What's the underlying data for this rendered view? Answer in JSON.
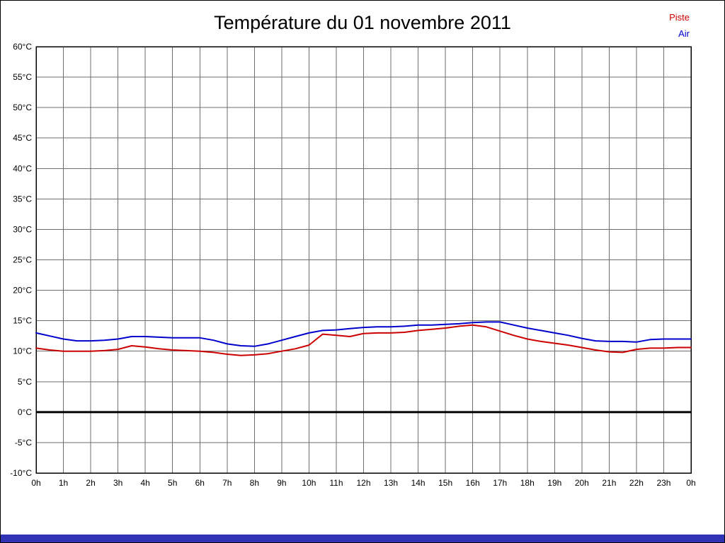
{
  "title": "Température du 01 novembre 2011",
  "footer_color": "#3232b4",
  "chart_data": {
    "type": "line",
    "title": "Température du 01 novembre 2011",
    "xlabel": "",
    "ylabel": "",
    "ylim": [
      -10,
      60
    ],
    "ytick_step": 5,
    "ytick_labels": [
      "60°C",
      "55°C",
      "50°C",
      "45°C",
      "40°C",
      "35°C",
      "30°C",
      "25°C",
      "20°C",
      "15°C",
      "10°C",
      "5°C",
      "0°C",
      "-5°C",
      "-10°C"
    ],
    "xtick_labels": [
      "0h",
      "1h",
      "2h",
      "3h",
      "4h",
      "5h",
      "6h",
      "7h",
      "8h",
      "9h",
      "10h",
      "11h",
      "12h",
      "13h",
      "14h",
      "15h",
      "16h",
      "17h",
      "18h",
      "19h",
      "20h",
      "21h",
      "22h",
      "23h",
      "0h"
    ],
    "grid": true,
    "zero_line": true,
    "legend_position": "top-right",
    "x": [
      0,
      0.5,
      1,
      1.5,
      2,
      2.5,
      3,
      3.5,
      4,
      4.5,
      5,
      5.5,
      6,
      6.5,
      7,
      7.5,
      8,
      8.5,
      9,
      9.5,
      10,
      10.5,
      11,
      11.5,
      12,
      12.5,
      13,
      13.5,
      14,
      14.5,
      15,
      15.5,
      16,
      16.5,
      17,
      17.5,
      18,
      18.5,
      19,
      19.5,
      20,
      20.5,
      21,
      21.5,
      22,
      22.5,
      23,
      23.5,
      24
    ],
    "series": [
      {
        "name": "Piste",
        "color": "#cc0000",
        "values": [
          10.5,
          10.2,
          10.0,
          10.0,
          10.0,
          10.1,
          10.3,
          10.9,
          10.7,
          10.4,
          10.2,
          10.1,
          10.0,
          9.8,
          9.5,
          9.3,
          9.4,
          9.6,
          10.0,
          10.4,
          11.0,
          12.8,
          12.6,
          12.4,
          12.9,
          13.0,
          13.0,
          13.1,
          13.4,
          13.6,
          13.8,
          14.1,
          14.3,
          14.0,
          13.3,
          12.6,
          12.0,
          11.6,
          11.3,
          11.0,
          10.6,
          10.2,
          9.9,
          9.8,
          10.3,
          10.5,
          10.5,
          10.6,
          10.6
        ]
      },
      {
        "name": "Air",
        "color": "#0000cc",
        "values": [
          13.0,
          12.5,
          12.0,
          11.7,
          11.7,
          11.8,
          12.0,
          12.4,
          12.4,
          12.3,
          12.2,
          12.2,
          12.2,
          11.8,
          11.2,
          10.9,
          10.8,
          11.2,
          11.8,
          12.4,
          13.0,
          13.4,
          13.5,
          13.7,
          13.9,
          14.0,
          14.0,
          14.1,
          14.3,
          14.3,
          14.4,
          14.5,
          14.7,
          14.8,
          14.8,
          14.3,
          13.8,
          13.4,
          13.0,
          12.6,
          12.1,
          11.7,
          11.6,
          11.6,
          11.5,
          11.9,
          12.0,
          12.0,
          12.0
        ]
      }
    ]
  }
}
